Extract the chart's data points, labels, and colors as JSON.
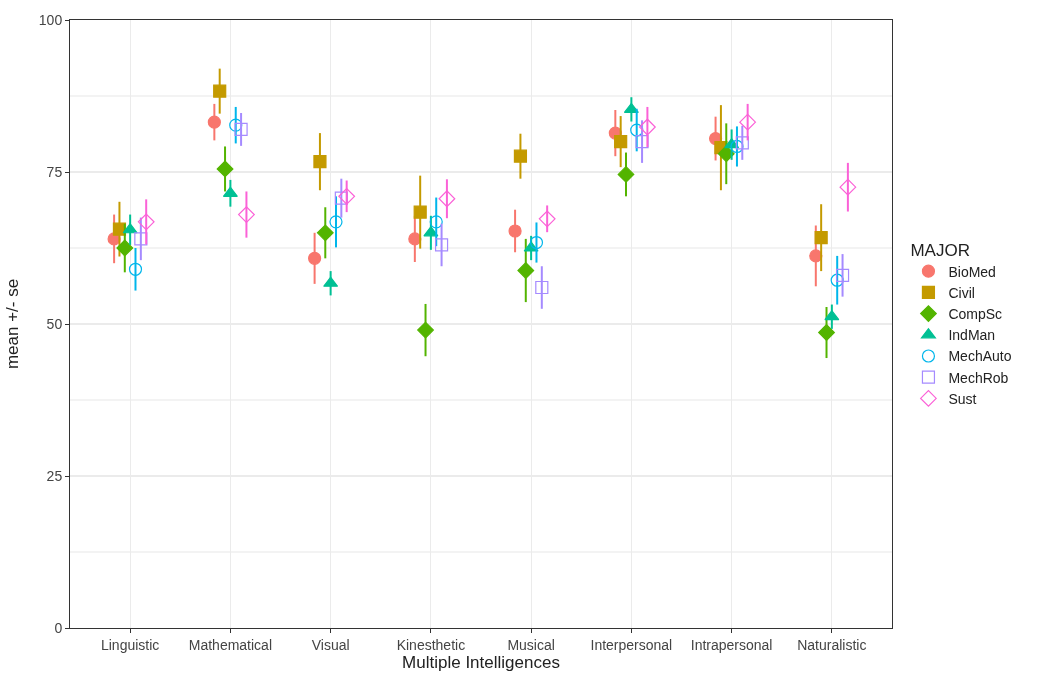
{
  "chart_data": {
    "type": "scatter",
    "xlabel": "Multiple Intelligences",
    "ylabel": "mean +/- se",
    "legend_title": "MAJOR",
    "categories": [
      "Linguistic",
      "Mathematical",
      "Visual",
      "Kinesthetic",
      "Musical",
      "Interpersonal",
      "Intrapersonal",
      "Naturalistic"
    ],
    "ylim": [
      0,
      100
    ],
    "yticks": [
      0,
      25,
      50,
      75,
      100
    ],
    "grid": true,
    "legend": "right",
    "series": [
      {
        "name": "BioMed",
        "color": "#f8766d",
        "marker": "circle",
        "values": [
          64,
          83.2,
          60.8,
          64,
          65.3,
          81.4,
          80.5,
          61.2
        ],
        "errors": [
          4,
          3,
          4.2,
          3.8,
          3.5,
          3.8,
          3.6,
          5
        ]
      },
      {
        "name": "Civil",
        "color": "#c49a00",
        "marker": "square",
        "values": [
          65.6,
          88.3,
          76.7,
          68.4,
          77.6,
          80,
          79,
          64.2
        ],
        "errors": [
          4.5,
          3.7,
          4.7,
          6,
          3.7,
          4.2,
          7,
          5.5
        ]
      },
      {
        "name": "CompSc",
        "color": "#53b400",
        "marker": "diamond",
        "values": [
          62.5,
          75.5,
          65,
          49,
          58.8,
          74.6,
          78,
          48.6
        ],
        "errors": [
          4,
          3.7,
          4.2,
          4.3,
          5.2,
          3.6,
          5,
          4.2
        ]
      },
      {
        "name": "IndMan",
        "color": "#00c094",
        "marker": "triangle",
        "values": [
          65.5,
          71.5,
          56.7,
          65,
          62.5,
          85.3,
          79.5,
          51.2
        ],
        "errors": [
          2.5,
          2.2,
          2,
          2.8,
          2,
          2,
          2.5,
          2
        ]
      },
      {
        "name": "MechAuto",
        "color": "#00b6eb",
        "marker": "circle-open",
        "values": [
          59,
          82.7,
          66.8,
          66.8,
          63.4,
          81.9,
          79.2,
          57.2
        ],
        "errors": [
          3.5,
          3,
          4.2,
          4,
          3.3,
          3.5,
          3.3,
          4
        ]
      },
      {
        "name": "MechRob",
        "color": "#a58aff",
        "marker": "square-open",
        "values": [
          64,
          82,
          70.7,
          63,
          56,
          80,
          79.8,
          58
        ],
        "errors": [
          3.5,
          2.7,
          3.2,
          3.5,
          3.5,
          3.5,
          2.8,
          3.5
        ]
      },
      {
        "name": "Sust",
        "color": "#fb61d7",
        "marker": "diamond-open",
        "values": [
          66.8,
          68,
          71,
          70.6,
          67.3,
          82.4,
          83.2,
          72.5
        ],
        "errors": [
          3.7,
          3.8,
          2.6,
          3.2,
          2.2,
          3.3,
          3,
          4
        ]
      }
    ]
  }
}
